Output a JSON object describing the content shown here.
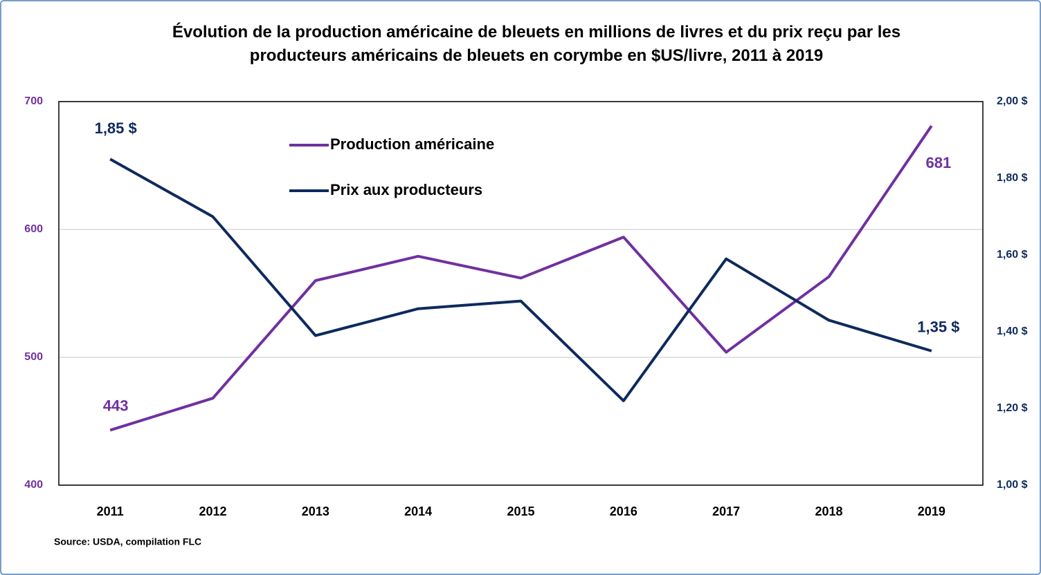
{
  "chart_data": {
    "type": "line",
    "title": "Évolution de la production américaine de bleuets en millions de livres  et du prix reçu par les producteurs américains de bleuets en corymbe en $US/livre, 2011 à 2019",
    "source": "Source: USDA, compilation FLC",
    "categories": [
      "2011",
      "2012",
      "2013",
      "2014",
      "2015",
      "2016",
      "2017",
      "2018",
      "2019"
    ],
    "series": [
      {
        "name": "Production américaine",
        "color": "#7030a0",
        "axis": "y",
        "values": [
          443,
          468,
          560,
          579,
          562,
          594,
          504,
          563,
          681
        ],
        "value_labels": [
          "443",
          null,
          null,
          null,
          null,
          null,
          null,
          null,
          "681"
        ]
      },
      {
        "name": "Prix aux producteurs",
        "color": "#0e2a5e",
        "axis": "y2",
        "values": [
          1.85,
          1.7,
          1.39,
          1.46,
          1.48,
          1.22,
          1.59,
          1.43,
          1.35
        ],
        "value_labels": [
          "1,85 $",
          null,
          null,
          null,
          null,
          null,
          null,
          null,
          "1,35 $"
        ]
      }
    ],
    "ylim": [
      400,
      700
    ],
    "yticks": [
      400,
      500,
      600,
      700
    ],
    "y2lim": [
      1,
      2
    ],
    "y2ticks": [
      {
        "value": 1,
        "label": "1,00 $"
      },
      {
        "value": 1.2,
        "label": "1,20 $"
      },
      {
        "value": 1.4,
        "label": "1,40 $"
      },
      {
        "value": 1.6,
        "label": "1,60 $"
      },
      {
        "value": 1.8,
        "label": "1,80 $"
      },
      {
        "value": 2,
        "label": "2,00 $"
      }
    ],
    "grid": true
  }
}
